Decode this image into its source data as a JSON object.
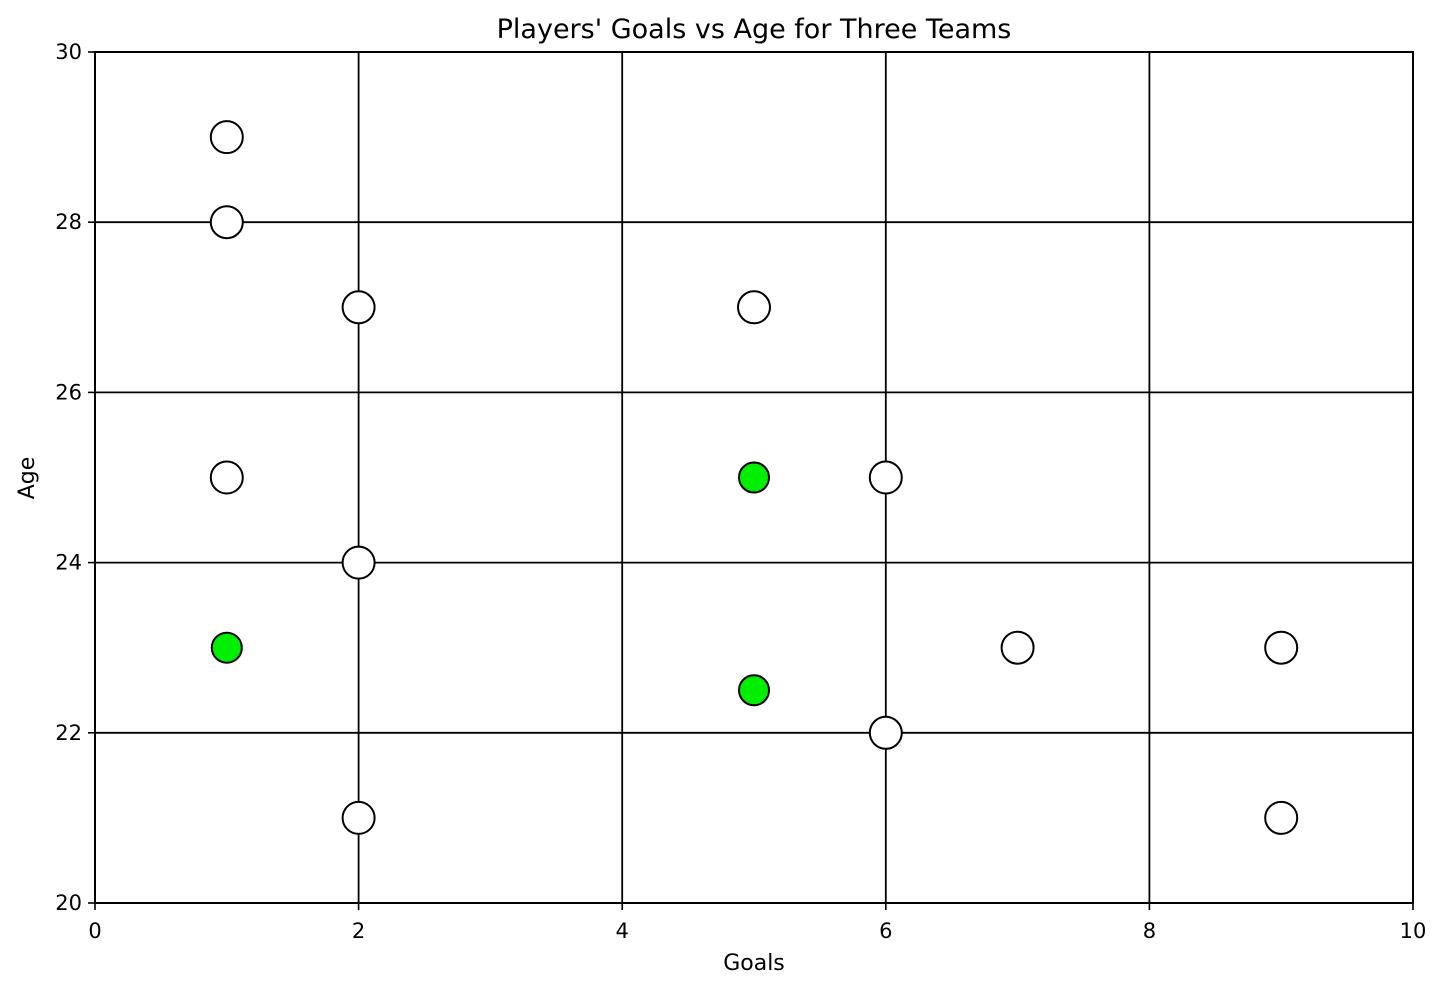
{
  "chart_data": {
    "type": "scatter",
    "title": "Players' Goals vs Age for Three Teams",
    "xlabel": "Goals",
    "ylabel": "Age",
    "xlim": [
      0,
      10
    ],
    "ylim": [
      20,
      30
    ],
    "xticks": [
      0,
      2,
      4,
      6,
      8,
      10
    ],
    "yticks": [
      20,
      22,
      24,
      26,
      28,
      30
    ],
    "grid": true,
    "legend": "none",
    "series": [
      {
        "color": "#ffffff",
        "marker": "large-circle",
        "points": [
          {
            "x": 1,
            "y": 29
          },
          {
            "x": 1,
            "y": 28
          },
          {
            "x": 2,
            "y": 27
          },
          {
            "x": 5,
            "y": 27
          },
          {
            "x": 1,
            "y": 25
          },
          {
            "x": 6,
            "y": 25
          },
          {
            "x": 2,
            "y": 24
          },
          {
            "x": 7,
            "y": 23
          },
          {
            "x": 9,
            "y": 23
          },
          {
            "x": 6,
            "y": 22
          },
          {
            "x": 2,
            "y": 21
          },
          {
            "x": 9,
            "y": 21
          }
        ]
      },
      {
        "color": "#00ee00",
        "marker": "medium-circle",
        "points": [
          {
            "x": 5,
            "y": 25
          },
          {
            "x": 1,
            "y": 23
          },
          {
            "x": 5,
            "y": 22.5
          }
        ]
      }
    ]
  }
}
